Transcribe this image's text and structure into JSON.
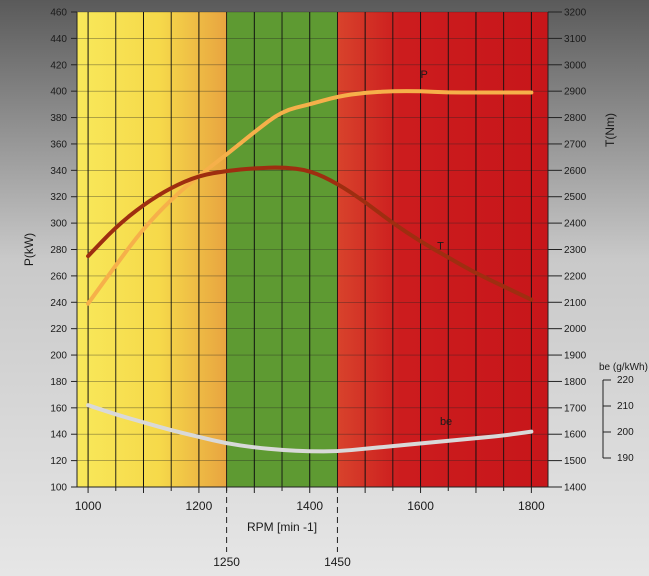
{
  "chart_data": {
    "type": "line",
    "x_axis": {
      "label": "RPM [min -1]",
      "range": [
        980,
        1830
      ],
      "ticks": [
        1000,
        1200,
        1400,
        1600,
        1800
      ],
      "extra_markers": [
        1250,
        1450
      ]
    },
    "y_axis_left": {
      "label": "P(kW)",
      "range": [
        100,
        460
      ],
      "ticks": [
        100,
        120,
        140,
        160,
        180,
        200,
        220,
        240,
        260,
        280,
        300,
        320,
        340,
        360,
        380,
        400,
        420,
        440,
        460
      ]
    },
    "y_axis_right": {
      "label": "T(Nm)",
      "range": [
        1400,
        3200
      ],
      "ticks": [
        1400,
        1500,
        1600,
        1700,
        1800,
        1900,
        2000,
        2100,
        2200,
        2300,
        2400,
        2500,
        2600,
        2700,
        2800,
        2900,
        3000,
        3100,
        3200
      ]
    },
    "y_axis_be": {
      "label": "be (g/kWh)",
      "ticks": [
        190,
        200,
        210,
        220
      ]
    },
    "zones": [
      {
        "from": 980,
        "to": 1250,
        "color": "#f7e04a"
      },
      {
        "from": 1250,
        "to": 1450,
        "color": "#5e9a32"
      },
      {
        "from": 1450,
        "to": 1830,
        "color": "#c8161b"
      }
    ],
    "series": [
      {
        "name": "P",
        "axis": "left",
        "color": "#f6b04a",
        "x": [
          1000,
          1050,
          1100,
          1150,
          1200,
          1250,
          1300,
          1350,
          1400,
          1450,
          1500,
          1550,
          1600,
          1650,
          1700,
          1750,
          1800
        ],
        "y": [
          239,
          268,
          296,
          318,
          336,
          352,
          369,
          385,
          390,
          396,
          399,
          400,
          400,
          399,
          399,
          399,
          399
        ]
      },
      {
        "name": "T",
        "axis": "right",
        "color": "#9e2e10",
        "x": [
          1000,
          1050,
          1100,
          1150,
          1200,
          1250,
          1300,
          1350,
          1400,
          1450,
          1500,
          1550,
          1600,
          1650,
          1700,
          1750,
          1800
        ],
        "y": [
          2275,
          2385,
          2470,
          2535,
          2580,
          2598,
          2608,
          2612,
          2600,
          2550,
          2480,
          2400,
          2330,
          2270,
          2210,
          2160,
          2110
        ]
      },
      {
        "name": "be",
        "axis": "left",
        "color": "#d9d9d9",
        "x": [
          1000,
          1050,
          1100,
          1150,
          1200,
          1250,
          1300,
          1350,
          1400,
          1450,
          1500,
          1550,
          1600,
          1650,
          1700,
          1750,
          1800
        ],
        "y": [
          162,
          155,
          149,
          143,
          138,
          133,
          130,
          128,
          127,
          127,
          129,
          131,
          133,
          135,
          137,
          139,
          142
        ]
      }
    ],
    "grid": true
  }
}
